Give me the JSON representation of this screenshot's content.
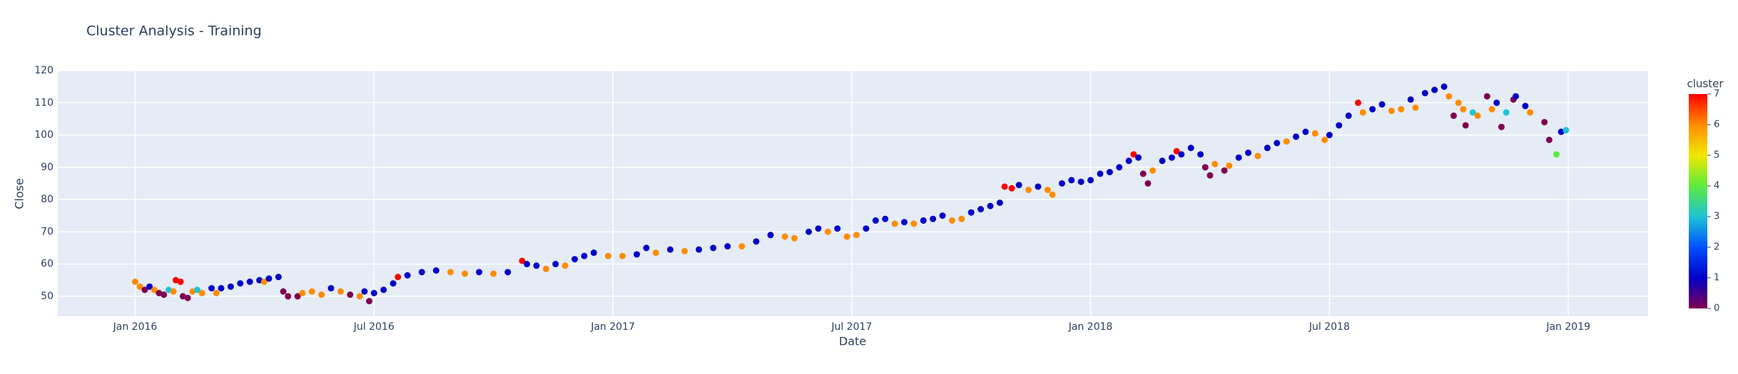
{
  "chart_data": {
    "type": "scatter",
    "title": "Cluster Analysis - Training",
    "xlabel": "Date",
    "ylabel": "Close",
    "colorbar_title": "cluster",
    "xlim": [
      2015.838,
      2019.167
    ],
    "ylim": [
      43.8,
      120
    ],
    "xticks": [
      {
        "value": 2016,
        "label": "Jan 2016"
      },
      {
        "value": 2016.5,
        "label": "Jul 2016"
      },
      {
        "value": 2017,
        "label": "Jan 2017"
      },
      {
        "value": 2017.5,
        "label": "Jul 2017"
      },
      {
        "value": 2018,
        "label": "Jan 2018"
      },
      {
        "value": 2018.5,
        "label": "Jul 2018"
      },
      {
        "value": 2019,
        "label": "Jan 2019"
      }
    ],
    "yticks": [
      50,
      60,
      70,
      80,
      90,
      100,
      110,
      120
    ],
    "clim": [
      0,
      7
    ],
    "cticks": [
      0,
      1,
      2,
      3,
      4,
      5,
      6,
      7
    ],
    "colorscale": [
      "#7f004f",
      "#0000c8",
      "#0050ff",
      "#1fc3d6",
      "#5ceb3c",
      "#f0e800",
      "#ff8c00",
      "#ff0000"
    ],
    "grid": true,
    "x": [
      2016.0,
      2016.01,
      2016.02,
      2016.03,
      2016.04,
      2016.05,
      2016.06,
      2016.07,
      2016.08,
      2016.085,
      2016.095,
      2016.1,
      2016.11,
      2016.12,
      2016.13,
      2016.14,
      2016.16,
      2016.17,
      2016.18,
      2016.2,
      2016.22,
      2016.24,
      2016.26,
      2016.27,
      2016.28,
      2016.3,
      2016.31,
      2016.32,
      2016.34,
      2016.35,
      2016.37,
      2016.39,
      2016.41,
      2016.43,
      2016.45,
      2016.47,
      2016.48,
      2016.49,
      2016.5,
      2016.52,
      2016.54,
      2016.55,
      2016.57,
      2016.6,
      2016.63,
      2016.66,
      2016.69,
      2016.72,
      2016.75,
      2016.78,
      2016.81,
      2016.82,
      2016.84,
      2016.86,
      2016.88,
      2016.9,
      2016.92,
      2016.94,
      2016.96,
      2016.99,
      2017.02,
      2017.05,
      2017.07,
      2017.09,
      2017.12,
      2017.15,
      2017.18,
      2017.21,
      2017.24,
      2017.27,
      2017.3,
      2017.33,
      2017.36,
      2017.38,
      2017.41,
      2017.43,
      2017.45,
      2017.47,
      2017.49,
      2017.51,
      2017.53,
      2017.55,
      2017.57,
      2017.59,
      2017.61,
      2017.63,
      2017.65,
      2017.67,
      2017.69,
      2017.71,
      2017.73,
      2017.75,
      2017.77,
      2017.79,
      2017.81,
      2017.82,
      2017.835,
      2017.85,
      2017.87,
      2017.89,
      2017.91,
      2017.92,
      2017.94,
      2017.96,
      2017.98,
      2018.0,
      2018.02,
      2018.04,
      2018.06,
      2018.08,
      2018.09,
      2018.1,
      2018.11,
      2018.12,
      2018.13,
      2018.15,
      2018.17,
      2018.18,
      2018.19,
      2018.21,
      2018.23,
      2018.24,
      2018.25,
      2018.26,
      2018.28,
      2018.29,
      2018.31,
      2018.33,
      2018.35,
      2018.37,
      2018.39,
      2018.41,
      2018.43,
      2018.45,
      2018.47,
      2018.49,
      2018.5,
      2018.52,
      2018.54,
      2018.56,
      2018.57,
      2018.59,
      2018.61,
      2018.63,
      2018.65,
      2018.67,
      2018.68,
      2018.7,
      2018.72,
      2018.74,
      2018.75,
      2018.76,
      2018.77,
      2018.78,
      2018.785,
      2018.8,
      2018.81,
      2018.83,
      2018.84,
      2018.85,
      2018.86,
      2018.87,
      2018.885,
      2018.89,
      2018.91,
      2018.92,
      2018.95,
      2018.96,
      2018.975,
      2018.985,
      2018.995
    ],
    "values": [
      54.5,
      53,
      52,
      53,
      52,
      51,
      50.5,
      52,
      51.5,
      55,
      54.5,
      50,
      49.5,
      51.5,
      52,
      51,
      52.5,
      51,
      52.5,
      53,
      54,
      54.5,
      55,
      54.5,
      55.5,
      56,
      51.5,
      50,
      50,
      51,
      51.5,
      50.5,
      52.5,
      51.5,
      50.5,
      50,
      51.5,
      48.5,
      51,
      52,
      54,
      56,
      56.5,
      57.5,
      58,
      57.5,
      57,
      57.5,
      57,
      57.5,
      61,
      60,
      59.5,
      58.5,
      60,
      59.5,
      61.5,
      62.5,
      63.5,
      62.5,
      62.5,
      63,
      65,
      63.5,
      64.5,
      64,
      64.5,
      65,
      65.5,
      65.5,
      67,
      69,
      68.5,
      68,
      70,
      71,
      70,
      71,
      68.5,
      69,
      71,
      73.5,
      74,
      72.5,
      73,
      72.5,
      73.5,
      74,
      75,
      73.5,
      74,
      76,
      77,
      78,
      79,
      84,
      83.5,
      84.5,
      83,
      84,
      83,
      81.5,
      85,
      86,
      85.5,
      86,
      88,
      88.5,
      90,
      92,
      94,
      93,
      88,
      85,
      89,
      92,
      93,
      95,
      94,
      96,
      94,
      90,
      87.5,
      91,
      89,
      90.5,
      93,
      94.5,
      93.5,
      96,
      97.5,
      98,
      99.5,
      101,
      100.5,
      98.5,
      100,
      103,
      106,
      110,
      107,
      108,
      109.5,
      107.5,
      108,
      111,
      108.5,
      113,
      114,
      115,
      112,
      106,
      110,
      108,
      103,
      107,
      106,
      112,
      108,
      110,
      102.5,
      107,
      111,
      112,
      109,
      107,
      104,
      98.5,
      94,
      101,
      101.5
    ],
    "clusters": [
      6,
      6,
      0,
      1,
      6,
      0,
      0,
      3,
      6,
      7,
      7,
      0,
      0,
      6,
      3,
      6,
      1,
      6,
      1,
      1,
      1,
      1,
      1,
      6,
      1,
      1,
      0,
      0,
      0,
      6,
      6,
      6,
      1,
      6,
      0,
      6,
      1,
      0,
      1,
      1,
      1,
      7,
      1,
      1,
      1,
      6,
      6,
      1,
      6,
      1,
      7,
      1,
      1,
      6,
      1,
      6,
      1,
      1,
      1,
      6,
      6,
      1,
      1,
      6,
      1,
      6,
      1,
      1,
      1,
      6,
      1,
      1,
      6,
      6,
      1,
      1,
      6,
      1,
      6,
      6,
      1,
      1,
      1,
      6,
      1,
      6,
      1,
      1,
      1,
      6,
      6,
      1,
      1,
      1,
      1,
      7,
      7,
      1,
      6,
      1,
      6,
      6,
      1,
      1,
      1,
      1,
      1,
      1,
      1,
      1,
      7,
      1,
      0,
      0,
      6,
      1,
      1,
      7,
      1,
      1,
      1,
      0,
      0,
      6,
      0,
      6,
      1,
      1,
      6,
      1,
      1,
      6,
      1,
      1,
      6,
      6,
      1,
      1,
      1,
      7,
      6,
      1,
      1,
      6,
      6,
      1,
      6,
      1,
      1,
      1,
      6,
      0,
      6,
      6,
      0,
      3,
      6,
      0,
      6,
      1,
      0,
      3,
      0,
      1,
      1,
      6,
      0,
      0,
      4,
      1,
      3
    ]
  }
}
